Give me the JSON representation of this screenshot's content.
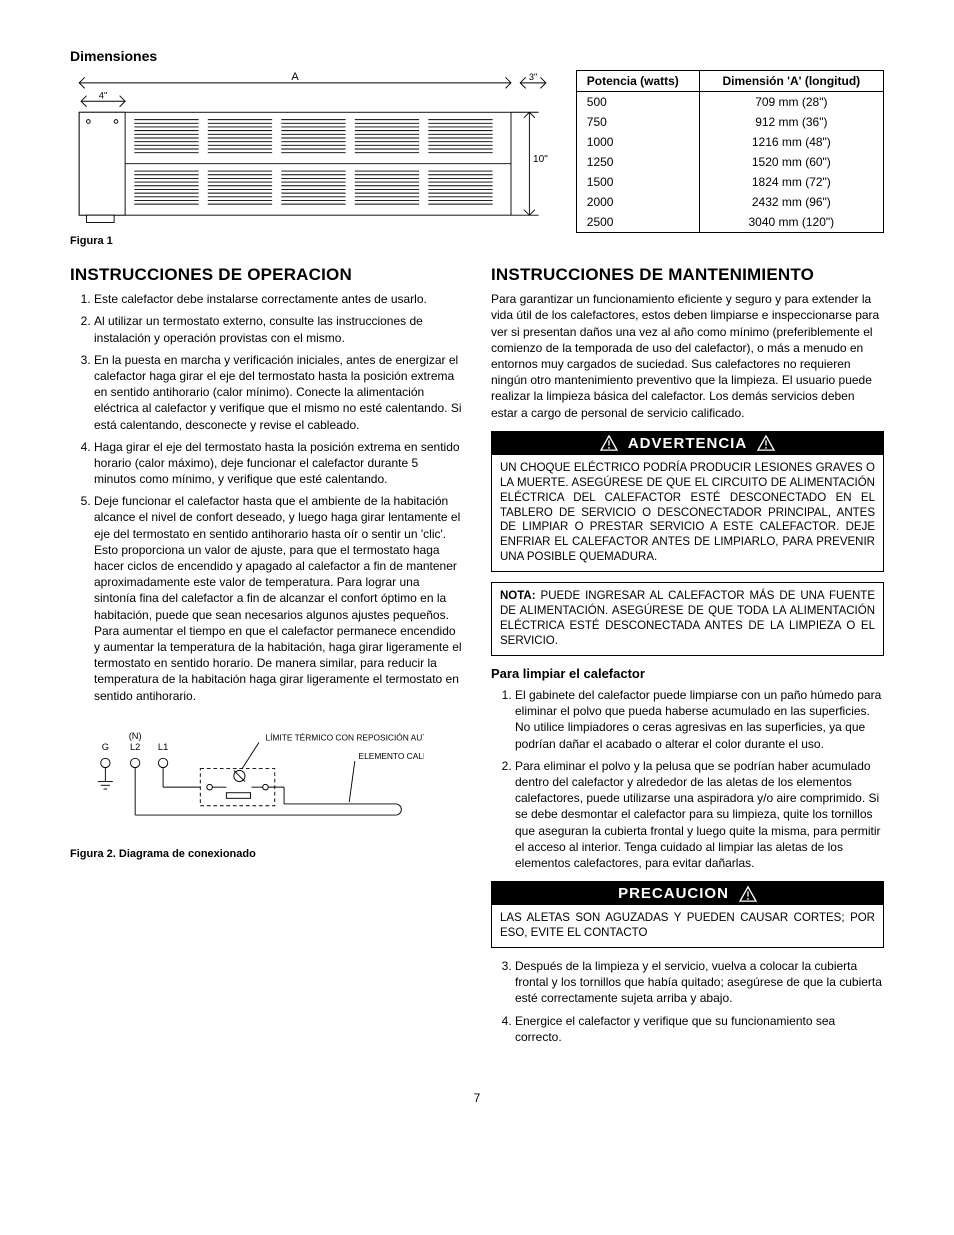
{
  "colors": {
    "fg": "#000000",
    "bg": "#ffffff"
  },
  "section_dimensiones": "Dimensiones",
  "figure1_caption": "Figura 1",
  "figure1_labels": {
    "A": "A",
    "left_ext": "4\"",
    "right_ext": "3\"",
    "height": "10\""
  },
  "dim_table": {
    "headers": [
      "Potencia (watts)",
      "Dimensión 'A' (longitud)"
    ],
    "rows": [
      [
        "500",
        "709 mm (28\")"
      ],
      [
        "750",
        "912 mm (36\")"
      ],
      [
        "1000",
        "1216 mm (48\")"
      ],
      [
        "1250",
        "1520 mm (60\")"
      ],
      [
        "1500",
        "1824 mm (72\")"
      ],
      [
        "2000",
        "2432 mm (96\")"
      ],
      [
        "2500",
        "3040 mm (120\")"
      ]
    ]
  },
  "operacion_title": "INSTRUCCIONES DE OPERACION",
  "operacion_items": [
    "Este calefactor debe instalarse correctamente antes de usarlo.",
    "Al utilizar un termostato externo, consulte las instrucciones de instalación y operación provistas con el mismo.",
    "En la puesta en marcha y verificación iniciales, antes de energizar el calefactor haga girar el eje del termostato hasta la posición extrema en sentido antihorario (calor mínimo). Conecte la alimentación eléctrica al calefactor y verifique que el mismo no esté calentando. Si está calentando, desconecte y revise el cableado.",
    "Haga girar el eje del termostato hasta la posición extrema en sentido horario (calor máximo), deje funcionar el calefactor durante 5 minutos como mínimo, y verifique que esté calentando.",
    "Deje funcionar el calefactor hasta que el ambiente de la habitación alcance el nivel de confort deseado, y luego haga girar lentamente el eje del termostato en sentido antihorario hasta oír o sentir un 'clic'. Esto proporciona un valor de ajuste, para que el termostato haga hacer ciclos de encendido y apagado al calefactor a fin de mantener aproximadamente este valor de temperatura. Para lograr una sintonía fina del calefactor a fin de alcanzar el confort óptimo en la habitación, puede que sean necesarios algunos ajustes pequeños. Para aumentar el tiempo en que el calefactor permanece encendido y aumentar la temperatura de la habitación, haga girar ligeramente el termostato en sentido horario. De manera similar, para reducir la temperatura de la habitación haga girar ligeramente el termostato en sentido antihorario."
  ],
  "figure2_caption": "Figura 2. Diagrama de conexionado",
  "figure2_labels": {
    "G": "G",
    "L2": "L2",
    "L1": "L1",
    "N": "(N)",
    "limite": "LÍMITE TÉRMICO CON REPOSICIÓN AUTOMÁTICA",
    "elemento": "ELEMENTO CALEFACTOR"
  },
  "mantenimiento_title": "INSTRUCCIONES DE MANTENIMIENTO",
  "mantenimiento_intro": "Para garantizar un funcionamiento eficiente y seguro y para extender la vida útil de los calefactores, estos deben limpiarse e inspeccionarse para ver si presentan daños una vez al año como mínimo (preferiblemente el comienzo de la temporada de uso del calefactor), o más a menudo en entornos muy cargados de suciedad. Sus calefactores no requieren ningún otro mantenimiento preventivo que la limpieza. El usuario puede realizar la limpieza básica del calefactor. Los demás servicios deben estar a cargo de personal de servicio calificado.",
  "advertencia_header": "ADVERTENCIA",
  "advertencia_body": "UN CHOQUE ELÉCTRICO PODRÍA PRODUCIR LESIONES GRAVES O LA MUERTE. ASEGÚRESE DE QUE EL CIRCUITO DE ALIMENTACIÓN ELÉCTRICA DEL CALEFACTOR ESTÉ DESCONECTADO EN EL TABLERO DE SERVICIO O DESCONECTADOR PRINCIPAL, ANTES DE LIMPIAR O PRESTAR SERVICIO A ESTE CALEFACTOR. DEJE ENFRIAR EL CALEFACTOR ANTES DE LIMPIARLO, PARA PREVENIR UNA POSIBLE QUEMADURA.",
  "nota_label": "NOTA:",
  "nota_body": " PUEDE INGRESAR AL CALEFACTOR MÁS DE UNA FUENTE DE ALIMENTACIÓN. ASEGÚRESE DE QUE TODA LA ALIMENTACIÓN ELÉCTRICA ESTÉ DESCONECTADA ANTES DE LA LIMPIEZA O EL SERVICIO.",
  "limpiar_title": "Para limpiar el calefactor",
  "limpiar_items_a": [
    "El gabinete del calefactor puede limpiarse con un paño húmedo para eliminar el polvo que pueda haberse acumulado en las superficies. No utilice limpiadores o ceras agresivas en las superficies, ya que podrían dañar el acabado o alterar el color durante el uso.",
    "Para eliminar el polvo y la pelusa que se podrían haber acumulado dentro del calefactor y alrededor de las aletas de los elementos calefactores, puede utilizarse una aspiradora y/o aire comprimido. Si se debe desmontar el calefactor para su limpieza, quite los tornillos que aseguran la cubierta frontal y luego quite la misma, para permitir el acceso al interior. Tenga cuidado al limpiar las aletas de los elementos calefactores, para evitar dañarlas."
  ],
  "precaucion_header": "PRECAUCION",
  "precaucion_body": "LAS ALETAS SON AGUZADAS Y PUEDEN CAUSAR CORTES; POR ESO, EVITE EL CONTACTO",
  "limpiar_items_b": [
    "Después de la limpieza y el servicio, vuelva a colocar la cubierta frontal y los tornillos que había quitado; asegúrese de que la cubierta esté correctamente sujeta arriba y abajo.",
    "Energice el calefactor y verifique que su funcionamiento sea correcto."
  ],
  "page_number": "7"
}
